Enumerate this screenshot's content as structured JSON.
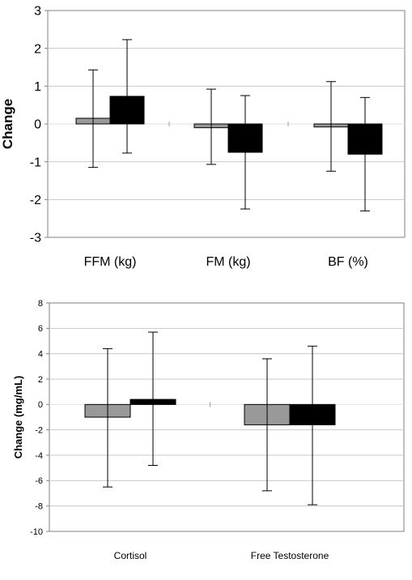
{
  "colors": {
    "series1": "#999999",
    "series2": "#000000",
    "grid": "#c8c8c8"
  },
  "chart_data": [
    {
      "type": "bar",
      "ylabel": "Change",
      "ylim": [
        -3,
        3
      ],
      "ytick_step": 1,
      "ytick_labels": [
        "3",
        "2",
        "1",
        "0",
        "-1",
        "-2",
        "-3"
      ],
      "grid": true,
      "categories": [
        "FFM (kg)",
        "FM (kg)",
        "BF (%)"
      ],
      "series": [
        {
          "values": [
            0.15,
            -0.1,
            -0.08
          ],
          "err_low": [
            -1.15,
            -1.07,
            -1.25
          ],
          "err_high": [
            1.43,
            0.92,
            1.12
          ]
        },
        {
          "values": [
            0.73,
            -0.75,
            -0.8
          ],
          "err_low": [
            -0.77,
            -2.25,
            -2.3
          ],
          "err_high": [
            2.23,
            0.75,
            0.7
          ]
        }
      ]
    },
    {
      "type": "bar",
      "ylabel": "Change (mg/mL)",
      "ylim": [
        -10,
        8
      ],
      "ytick_step": 2,
      "ytick_labels": [
        "8",
        "6",
        "4",
        "2",
        "0",
        "-2",
        "-4",
        "-6",
        "-8",
        "-10"
      ],
      "grid": true,
      "categories": [
        "Cortisol",
        "Free Testosterone"
      ],
      "series": [
        {
          "values": [
            -1.0,
            -1.6
          ],
          "err_low": [
            -6.5,
            -6.8
          ],
          "err_high": [
            4.4,
            3.6
          ]
        },
        {
          "values": [
            0.4,
            -1.6
          ],
          "err_low": [
            -4.8,
            -7.9
          ],
          "err_high": [
            5.7,
            4.6
          ]
        }
      ]
    }
  ]
}
